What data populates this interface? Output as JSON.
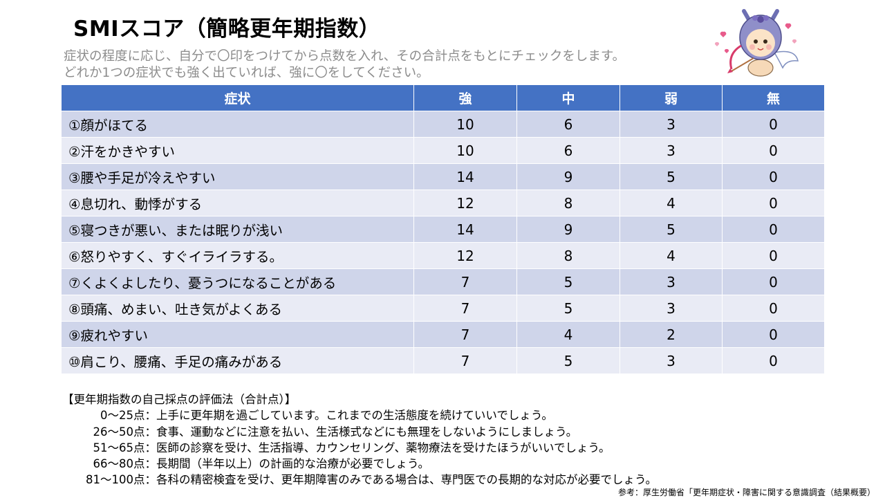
{
  "title": "SMIスコア（簡略更年期指数）",
  "subtitle": [
    "症状の程度に応じ、自分で〇印をつけてから点数を入れ、その合計点をもとにチェックをします。",
    "どれか1つの症状でも強く出ていれば、強に〇をしてください。"
  ],
  "colors": {
    "header_bg": "#4472c4",
    "row_odd": "#cfd5ea",
    "row_even": "#e9ebf5",
    "subtitle": "#8c8c8c"
  },
  "table": {
    "headers": [
      "症状",
      "強",
      "中",
      "弱",
      "無"
    ],
    "rows": [
      {
        "symptom": "①顔がほてる",
        "strong": "10",
        "medium": "6",
        "weak": "3",
        "none": "0"
      },
      {
        "symptom": "②汗をかきやすい",
        "strong": "10",
        "medium": "6",
        "weak": "3",
        "none": "0"
      },
      {
        "symptom": "③腰や手足が冷えやすい",
        "strong": "14",
        "medium": "9",
        "weak": "5",
        "none": "0"
      },
      {
        "symptom": "④息切れ、動悸がする",
        "strong": "12",
        "medium": "8",
        "weak": "4",
        "none": "0"
      },
      {
        "symptom": "⑤寝つきが悪い、または眠りが浅い",
        "strong": "14",
        "medium": "9",
        "weak": "5",
        "none": "0"
      },
      {
        "symptom": "⑥怒りやすく、すぐイライラする。",
        "strong": "12",
        "medium": "8",
        "weak": "4",
        "none": "0"
      },
      {
        "symptom": "⑦くよくよしたり、憂うつになることがある",
        "strong": "7",
        "medium": "5",
        "weak": "3",
        "none": "0"
      },
      {
        "symptom": "⑧頭痛、めまい、吐き気がよくある",
        "strong": "7",
        "medium": "5",
        "weak": "3",
        "none": "0"
      },
      {
        "symptom": "⑨疲れやすい",
        "strong": "7",
        "medium": "4",
        "weak": "2",
        "none": "0"
      },
      {
        "symptom": "⑩肩こり、腰痛、手足の痛みがある",
        "strong": "7",
        "medium": "5",
        "weak": "3",
        "none": "0"
      }
    ]
  },
  "evaluation": {
    "heading": "【更年期指数の自己採点の評価法（合計点）】",
    "items": [
      {
        "range": "0～25点：",
        "text": "上手に更年期を過ごしています。これまでの生活態度を続けていいでしょう。"
      },
      {
        "range": "26～50点：",
        "text": "食事、運動などに注意を払い、生活様式などにも無理をしないようにしましょう。"
      },
      {
        "range": "51～65点：",
        "text": "医師の診察を受け、生活指導、カウンセリング、薬物療法を受けたほうがいいでしょう。"
      },
      {
        "range": "66～80点：",
        "text": "長期間（半年以上）の計画的な治療が必要でしょう。"
      },
      {
        "range": "81～100点：",
        "text": "各科の精密検査を受け、更年期障害のみである場合は、専門医での長期的な対応が必要でしょう。"
      }
    ]
  },
  "source": "参考：厚生労働省「更年期症状・障害に関する意識調査（結果概要）",
  "mascot": {
    "icon": "cupid-mascot-illustration"
  }
}
